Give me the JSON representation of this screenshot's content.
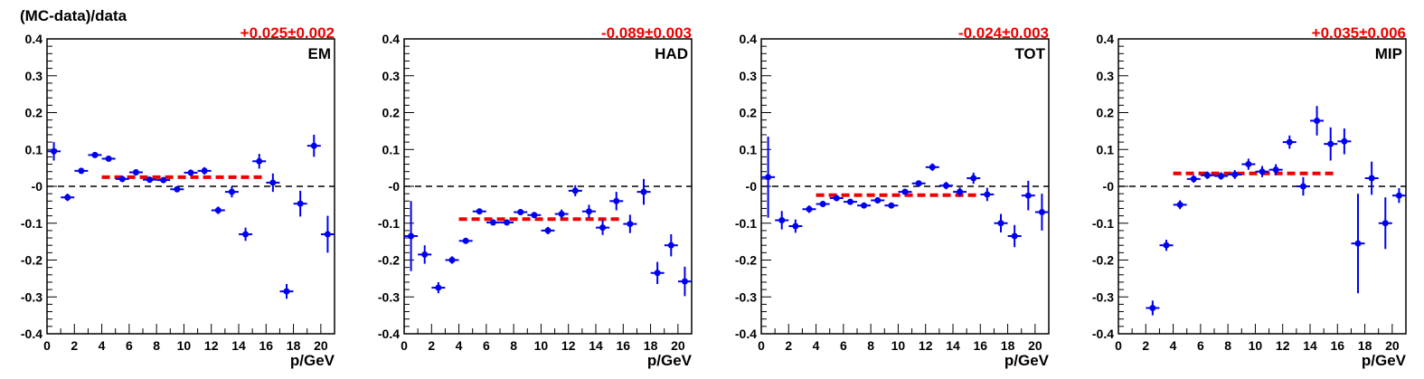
{
  "figure": {
    "ylabel": "(MC-data)/data",
    "colors": {
      "points": "#0000ee",
      "fit": "#ee0000",
      "reference": "#000000",
      "frame": "#000000"
    }
  },
  "chart_data": [
    {
      "type": "scatter",
      "panel_label": "EM",
      "fit_text": "+0.025±0.002",
      "fit": {
        "value": 0.025,
        "x_from": 4,
        "x_to": 16
      },
      "xlabel": "p/GeV",
      "xlim": [
        0,
        21
      ],
      "ylim": [
        -0.4,
        0.4
      ],
      "reference_line": 0,
      "x_ticks": [
        0,
        2,
        4,
        6,
        8,
        10,
        12,
        14,
        16,
        18,
        20
      ],
      "y_ticks": [
        -0.4,
        -0.3,
        -0.2,
        -0.1,
        0,
        0.1,
        0.2,
        0.3,
        0.4
      ],
      "y_tick_labels": [
        "-0.4",
        "-0.3",
        "-0.2",
        "-0.1",
        "-0",
        "0.1",
        "0.2",
        "0.3",
        "0.4"
      ],
      "series": [
        {
          "x": [
            0.5,
            1.5,
            2.5,
            3.5,
            4.5,
            5.5,
            6.5,
            7.5,
            8.5,
            9.5,
            10.5,
            11.5,
            12.5,
            13.5,
            14.5,
            15.5,
            16.5,
            17.5,
            18.5,
            19.5,
            20.5
          ],
          "y": [
            0.095,
            -0.03,
            0.042,
            0.085,
            0.075,
            0.02,
            0.038,
            0.018,
            0.017,
            -0.008,
            0.037,
            0.042,
            -0.065,
            -0.015,
            -0.13,
            0.068,
            0.01,
            -0.285,
            -0.047,
            0.11,
            -0.13
          ],
          "err": [
            0.025,
            0.01,
            0.008,
            0.006,
            0.008,
            0.008,
            0.008,
            0.008,
            0.008,
            0.008,
            0.008,
            0.01,
            0.01,
            0.015,
            0.018,
            0.02,
            0.025,
            0.02,
            0.035,
            0.03,
            0.05
          ]
        }
      ]
    },
    {
      "type": "scatter",
      "panel_label": "HAD",
      "fit_text": "-0.089±0.003",
      "fit": {
        "value": -0.089,
        "x_from": 4,
        "x_to": 16
      },
      "xlabel": "p/GeV",
      "xlim": [
        0,
        21
      ],
      "ylim": [
        -0.4,
        0.4
      ],
      "reference_line": 0,
      "x_ticks": [
        0,
        2,
        4,
        6,
        8,
        10,
        12,
        14,
        16,
        18,
        20
      ],
      "y_ticks": [
        -0.4,
        -0.3,
        -0.2,
        -0.1,
        0,
        0.1,
        0.2,
        0.3,
        0.4
      ],
      "y_tick_labels": [
        "-0.4",
        "-0.3",
        "-0.2",
        "-0.1",
        "-0",
        "0.1",
        "0.2",
        "0.3",
        "0.4"
      ],
      "series": [
        {
          "x": [
            0.5,
            1.5,
            2.5,
            3.5,
            4.5,
            5.5,
            6.5,
            7.5,
            8.5,
            9.5,
            10.5,
            11.5,
            12.5,
            13.5,
            14.5,
            15.5,
            16.5,
            17.5,
            18.5,
            19.5,
            20.5
          ],
          "y": [
            -0.135,
            -0.185,
            -0.275,
            -0.2,
            -0.148,
            -0.068,
            -0.098,
            -0.098,
            -0.07,
            -0.078,
            -0.12,
            -0.075,
            -0.012,
            -0.068,
            -0.112,
            -0.04,
            -0.102,
            -0.015,
            -0.235,
            -0.16,
            -0.258
          ],
          "err": [
            0.095,
            0.025,
            0.015,
            0.01,
            0.008,
            0.008,
            0.008,
            0.008,
            0.008,
            0.008,
            0.01,
            0.012,
            0.015,
            0.018,
            0.02,
            0.025,
            0.025,
            0.035,
            0.03,
            0.03,
            0.04
          ]
        }
      ]
    },
    {
      "type": "scatter",
      "panel_label": "TOT",
      "fit_text": "-0.024±0.003",
      "fit": {
        "value": -0.024,
        "x_from": 4,
        "x_to": 16
      },
      "xlabel": "p/GeV",
      "xlim": [
        0,
        21
      ],
      "ylim": [
        -0.4,
        0.4
      ],
      "reference_line": 0,
      "x_ticks": [
        0,
        2,
        4,
        6,
        8,
        10,
        12,
        14,
        16,
        18,
        20
      ],
      "y_ticks": [
        -0.4,
        -0.3,
        -0.2,
        -0.1,
        0,
        0.1,
        0.2,
        0.3,
        0.4
      ],
      "y_tick_labels": [
        "-0.4",
        "-0.3",
        "-0.2",
        "-0.1",
        "-0",
        "0.1",
        "0.2",
        "0.3",
        "0.4"
      ],
      "series": [
        {
          "x": [
            0.5,
            1.5,
            2.5,
            3.5,
            4.5,
            5.5,
            6.5,
            7.5,
            8.5,
            9.5,
            10.5,
            11.5,
            12.5,
            13.5,
            14.5,
            15.5,
            16.5,
            17.5,
            18.5,
            19.5,
            20.5
          ],
          "y": [
            0.025,
            -0.092,
            -0.108,
            -0.062,
            -0.048,
            -0.032,
            -0.042,
            -0.052,
            -0.038,
            -0.052,
            -0.015,
            0.008,
            0.052,
            0.002,
            -0.015,
            0.022,
            -0.022,
            -0.1,
            -0.135,
            -0.025,
            -0.07
          ],
          "err": [
            0.11,
            0.025,
            0.018,
            0.01,
            0.008,
            0.008,
            0.008,
            0.008,
            0.008,
            0.008,
            0.008,
            0.008,
            0.01,
            0.01,
            0.012,
            0.015,
            0.018,
            0.025,
            0.03,
            0.04,
            0.05
          ]
        }
      ]
    },
    {
      "type": "scatter",
      "panel_label": "MIP",
      "fit_text": "+0.035±0.006",
      "fit": {
        "value": 0.035,
        "x_from": 4,
        "x_to": 16
      },
      "xlabel": "p/GeV",
      "xlim": [
        0,
        21
      ],
      "ylim": [
        -0.4,
        0.4
      ],
      "reference_line": 0,
      "x_ticks": [
        0,
        2,
        4,
        6,
        8,
        10,
        12,
        14,
        16,
        18,
        20
      ],
      "y_ticks": [
        -0.4,
        -0.3,
        -0.2,
        -0.1,
        0,
        0.1,
        0.2,
        0.3,
        0.4
      ],
      "y_tick_labels": [
        "-0.4",
        "-0.3",
        "-0.2",
        "-0.1",
        "-0",
        "0.1",
        "0.2",
        "0.3",
        "0.4"
      ],
      "series": [
        {
          "x": [
            2.5,
            3.5,
            4.5,
            5.5,
            6.5,
            7.5,
            8.5,
            9.5,
            10.5,
            11.5,
            12.5,
            13.5,
            14.5,
            15.5,
            16.5,
            17.5,
            18.5,
            19.5,
            20.5
          ],
          "y": [
            -0.33,
            -0.16,
            -0.05,
            0.02,
            0.03,
            0.028,
            0.032,
            0.06,
            0.04,
            0.045,
            0.12,
            0.0,
            0.178,
            0.115,
            0.122,
            -0.155,
            0.022,
            -0.1,
            -0.025
          ],
          "err": [
            0.02,
            0.015,
            0.012,
            0.01,
            0.01,
            0.01,
            0.012,
            0.015,
            0.015,
            0.015,
            0.018,
            0.025,
            0.04,
            0.045,
            0.035,
            0.135,
            0.045,
            0.07,
            0.02
          ]
        }
      ]
    }
  ]
}
